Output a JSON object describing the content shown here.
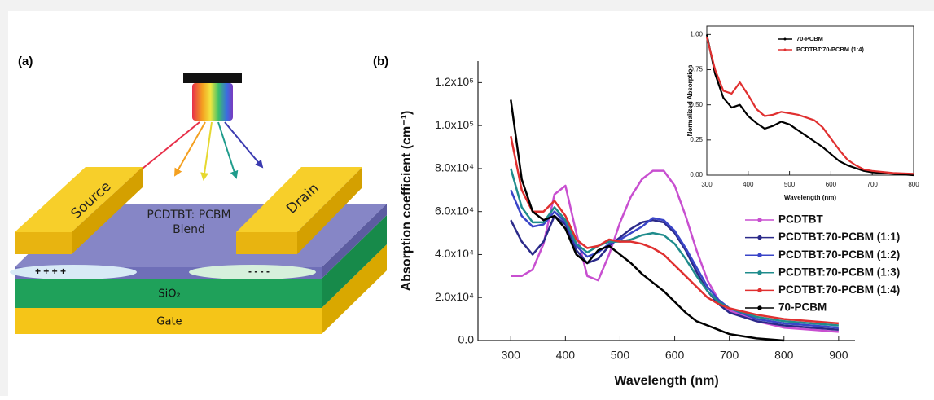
{
  "panel_a": {
    "label": "(a)",
    "source": "Source",
    "drain": "Drain",
    "active_layer": "PCDTBT: PCBM",
    "active_layer_2": "Blend",
    "holes": "+ + + +",
    "electrons": "- - - -",
    "dielectric": "SiO₂",
    "gate": "Gate"
  },
  "panel_b_label": "(b)",
  "chart_data": [
    {
      "type": "line",
      "x_label": "Wavelength (nm)",
      "y_label": "Absorption coefficient (cm⁻¹)",
      "x": [
        300,
        320,
        340,
        360,
        380,
        400,
        420,
        440,
        460,
        480,
        500,
        520,
        540,
        560,
        580,
        600,
        620,
        640,
        660,
        680,
        700,
        750,
        800,
        850,
        900
      ],
      "xlim": [
        240,
        930
      ],
      "xticks": [
        300,
        400,
        500,
        600,
        700,
        800,
        900
      ],
      "ylim": [
        0,
        130000
      ],
      "yticks": [
        {
          "value": 0,
          "label": "0.0"
        },
        {
          "value": 20000,
          "label": "2.0x10⁴"
        },
        {
          "value": 40000,
          "label": "4.0x10⁴"
        },
        {
          "value": 60000,
          "label": "6.0x10⁴"
        },
        {
          "value": 80000,
          "label": "8.0x10⁴"
        },
        {
          "value": 100000,
          "label": "1.0x10⁵"
        },
        {
          "value": 120000,
          "label": "1.2x10⁵"
        }
      ],
      "series": [
        {
          "name": "PCDTBT",
          "color": "#c84fd0",
          "values": [
            30000,
            30000,
            33000,
            45000,
            68000,
            72000,
            50000,
            30000,
            28000,
            40000,
            55000,
            67000,
            75000,
            79000,
            79000,
            72000,
            58000,
            42000,
            28000,
            19000,
            14000,
            9000,
            6000,
            5000,
            4000
          ]
        },
        {
          "name": "PCDTBT:70-PCBM (1:1)",
          "color": "#2b2a8a",
          "values": [
            56000,
            46000,
            40000,
            46000,
            58000,
            54000,
            42000,
            36000,
            38000,
            44000,
            48000,
            52000,
            55000,
            56000,
            55000,
            50000,
            42000,
            32000,
            23000,
            17000,
            13000,
            9000,
            7000,
            6000,
            5000
          ]
        },
        {
          "name": "PCDTBT:70-PCBM (1:2)",
          "color": "#3a45c8",
          "values": [
            70000,
            58000,
            53000,
            54000,
            60000,
            55000,
            44000,
            39000,
            41000,
            45000,
            47000,
            50000,
            53000,
            57000,
            56000,
            51000,
            43000,
            34000,
            25000,
            19000,
            15000,
            10000,
            8000,
            7000,
            6000
          ]
        },
        {
          "name": "PCDTBT:70-PCBM (1:3)",
          "color": "#1f8c8c",
          "values": [
            80000,
            62000,
            55000,
            55000,
            62000,
            56000,
            45000,
            41000,
            44000,
            46000,
            46000,
            47000,
            49000,
            50000,
            49000,
            45000,
            38000,
            30000,
            23000,
            18000,
            15000,
            11000,
            9000,
            8000,
            7000
          ]
        },
        {
          "name": "PCDTBT:70-PCBM (1:4)",
          "color": "#e03030",
          "values": [
            95000,
            70000,
            60000,
            60000,
            65000,
            58000,
            47000,
            43000,
            44000,
            47000,
            46000,
            46000,
            45000,
            43000,
            40000,
            35000,
            30000,
            25000,
            20000,
            17000,
            15000,
            12000,
            10000,
            9000,
            8000
          ]
        },
        {
          "name": "70-PCBM",
          "color": "#000000",
          "values": [
            112000,
            75000,
            60000,
            56000,
            58000,
            52000,
            40000,
            36000,
            42000,
            44000,
            40000,
            36000,
            31000,
            27000,
            23000,
            18000,
            13000,
            9000,
            7000,
            5000,
            3000,
            1000,
            0,
            null,
            null
          ]
        }
      ]
    },
    {
      "type": "line",
      "x_label": "Wavelength (nm)",
      "y_label": "Normalized Absorption",
      "x": [
        300,
        320,
        340,
        360,
        380,
        400,
        420,
        440,
        460,
        480,
        500,
        520,
        540,
        560,
        580,
        600,
        620,
        640,
        660,
        680,
        700,
        750,
        800
      ],
      "xlim": [
        300,
        800
      ],
      "xticks": [
        300,
        400,
        500,
        600,
        700,
        800
      ],
      "ylim": [
        0,
        1.06
      ],
      "yticks": [
        {
          "value": 0,
          "label": "0.00"
        },
        {
          "value": 0.25,
          "label": "0.25"
        },
        {
          "value": 0.5,
          "label": "0.50"
        },
        {
          "value": 0.75,
          "label": "0.75"
        },
        {
          "value": 1,
          "label": "1.00"
        }
      ],
      "series": [
        {
          "name": "70-PCBM",
          "color": "#000000",
          "values": [
            1.0,
            0.72,
            0.55,
            0.48,
            0.5,
            0.42,
            0.37,
            0.33,
            0.35,
            0.38,
            0.36,
            0.32,
            0.28,
            0.24,
            0.2,
            0.15,
            0.1,
            0.07,
            0.05,
            0.03,
            0.02,
            0.01,
            0.0
          ]
        },
        {
          "name": "PCDTBT:70-PCBM (1:4)",
          "color": "#e03030",
          "values": [
            0.98,
            0.75,
            0.6,
            0.58,
            0.66,
            0.57,
            0.47,
            0.42,
            0.43,
            0.45,
            0.44,
            0.43,
            0.41,
            0.39,
            0.34,
            0.26,
            0.18,
            0.11,
            0.07,
            0.04,
            0.03,
            0.015,
            0.01
          ]
        }
      ]
    }
  ]
}
